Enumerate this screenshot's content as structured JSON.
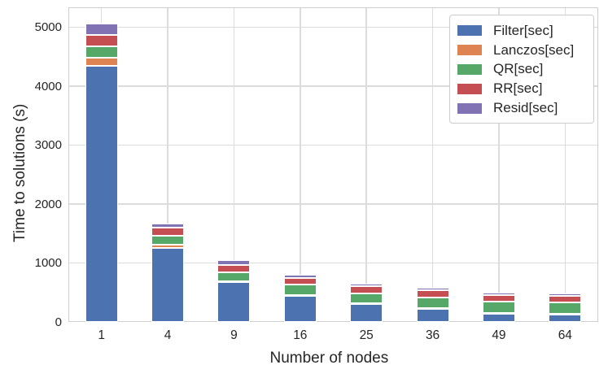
{
  "chart_data": {
    "type": "bar",
    "stacked": true,
    "title": "",
    "xlabel": "Number of nodes",
    "ylabel": "Time to solutions (s)",
    "categories": [
      "1",
      "4",
      "9",
      "16",
      "25",
      "36",
      "49",
      "64"
    ],
    "series": [
      {
        "name": "Filter[sec]",
        "color": "#4C72B0",
        "values": [
          4350,
          1255,
          675,
          445,
          300,
          230,
          148,
          128
        ]
      },
      {
        "name": "Lanczos[sec]",
        "color": "#DD8452",
        "values": [
          140,
          55,
          20,
          15,
          12,
          10,
          8,
          8
        ]
      },
      {
        "name": "QR[sec]",
        "color": "#55A868",
        "values": [
          190,
          150,
          145,
          170,
          168,
          180,
          190,
          198
        ]
      },
      {
        "name": "RR[sec]",
        "color": "#C44E52",
        "values": [
          195,
          140,
          125,
          120,
          125,
          115,
          110,
          105
        ]
      },
      {
        "name": "Resid[sec]",
        "color": "#8172B3",
        "values": [
          185,
          65,
          80,
          55,
          50,
          45,
          42,
          40
        ]
      }
    ],
    "stack_totals": [
      5060,
      1665,
      1045,
      805,
      655,
      580,
      498,
      479
    ],
    "ylim": [
      0,
      5340
    ],
    "yticks": [
      0,
      1000,
      2000,
      3000,
      4000,
      5000
    ],
    "grid": true,
    "grid_axes": "both",
    "legend_position": "upper right",
    "legend_entries": [
      "Filter[sec]",
      "Lanczos[sec]",
      "QR[sec]",
      "RR[sec]",
      "Resid[sec]"
    ]
  },
  "style": {
    "background": "#ffffff",
    "grid_color": "#dcdcdc",
    "spine_color": "#cfcfcf",
    "text_color": "#262626",
    "bar_edge_color": "#ffffff"
  }
}
